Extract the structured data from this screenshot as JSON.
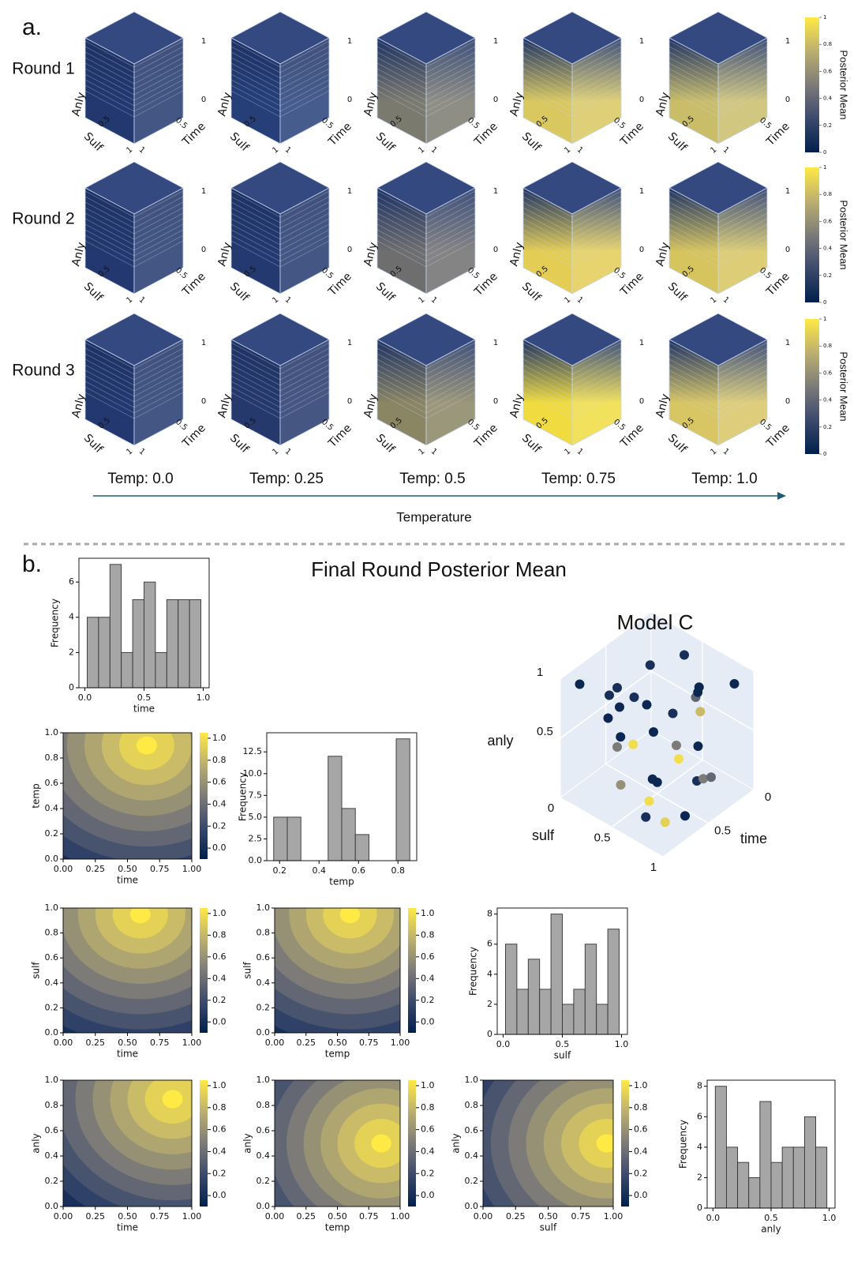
{
  "panel_a": {
    "label": "a.",
    "rows": [
      "Round 1",
      "Round 2",
      "Round 3"
    ],
    "columns": [
      "Temp: 0.0",
      "Temp: 0.25",
      "Temp: 0.5",
      "Temp: 0.75",
      "Temp: 1.0"
    ],
    "arrow_label": "Temperature",
    "cube_labels": [
      "Anly",
      "Sulf",
      "Time"
    ],
    "cube_ticks": [
      "1",
      "0",
      "0.5",
      "0.5",
      "1",
      "1"
    ],
    "cube_colors": [
      [
        "#22386e",
        "#263f78",
        "#7a7a6e",
        "#d9c860",
        "#c9bd6a"
      ],
      [
        "#22386e",
        "#23396f",
        "#6e6e6e",
        "#e3cd55",
        "#d6c45e"
      ],
      [
        "#22386e",
        "#26396c",
        "#8a8563",
        "#f0dc40",
        "#d8c665"
      ]
    ],
    "colorbar": {
      "label": "Posterior Mean",
      "lim": [
        0,
        1
      ],
      "ticks": [
        0,
        0.2,
        0.4,
        0.6,
        0.8,
        1
      ],
      "colors": [
        "#00204c",
        "#3b496c",
        "#7c7b78",
        "#bcaf6f",
        "#ffe945"
      ]
    }
  },
  "panel_b": {
    "label": "b.",
    "title": "Final Round Posterior Mean"
  },
  "contour_axes": {
    "xlim": [
      0,
      1
    ],
    "ylim": [
      0,
      1
    ],
    "xticks": [
      {
        "value": 0,
        "label": "0.00"
      },
      0.25,
      {
        "value": 0.5,
        "label": "0.50"
      },
      0.75,
      {
        "value": 1,
        "label": "1.00"
      }
    ],
    "yticks": [
      {
        "value": 0,
        "label": "0.0"
      },
      0.2,
      0.4,
      0.6,
      0.8,
      {
        "value": 1,
        "label": "1.0"
      }
    ],
    "colorbar_lim": [
      -0.1,
      1.05
    ],
    "colorbar_ticks": [
      {
        "value": 0,
        "label": "0.0"
      },
      0.2,
      0.4,
      0.6,
      0.8,
      {
        "value": 1,
        "label": "1.0"
      }
    ]
  },
  "chart_data": [
    {
      "type": "histogram",
      "xlabel": "time",
      "ylabel": "Frequency",
      "color": "#a6a6a6",
      "bins": [
        0.02,
        0.116,
        0.212,
        0.308,
        0.404,
        0.5,
        0.596,
        0.692,
        0.788,
        0.884,
        0.98
      ],
      "counts": [
        4,
        4,
        7,
        2,
        5,
        6,
        2,
        5,
        5,
        5
      ],
      "xlim": [
        -0.05,
        1.05
      ],
      "ylim": [
        0,
        7.35
      ],
      "xticks": [
        {
          "value": 0,
          "label": "0.0"
        },
        0.5,
        {
          "value": 1,
          "label": "1.0"
        }
      ],
      "yticks": [
        0,
        2,
        4,
        6
      ]
    },
    {
      "type": "contour",
      "xlabel": "time",
      "ylabel": "temp",
      "peak": [
        0.65,
        0.9
      ]
    },
    {
      "type": "histogram",
      "xlabel": "temp",
      "ylabel": "Frequency",
      "color": "#a6a6a6",
      "bins": [
        0.17,
        0.239,
        0.308,
        0.377,
        0.446,
        0.515,
        0.584,
        0.653,
        0.722,
        0.791,
        0.86
      ],
      "counts": [
        5,
        5,
        0,
        0,
        12,
        6,
        3,
        0,
        0,
        14
      ],
      "xlim": [
        0.135,
        0.895
      ],
      "ylim": [
        0,
        14.7
      ],
      "xticks": [
        0.2,
        0.4,
        0.6,
        0.8
      ],
      "yticks": [
        {
          "value": 0,
          "label": "0.0"
        },
        2.5,
        {
          "value": 5,
          "label": "5.0"
        },
        7.5,
        {
          "value": 10,
          "label": "10.0"
        },
        12.5
      ]
    },
    {
      "type": "contour",
      "xlabel": "time",
      "ylabel": "sulf",
      "peak": [
        0.6,
        0.95
      ]
    },
    {
      "type": "contour",
      "xlabel": "temp",
      "ylabel": "sulf",
      "peak": [
        0.6,
        0.95
      ]
    },
    {
      "type": "histogram",
      "xlabel": "sulf",
      "ylabel": "Frequency",
      "color": "#a6a6a6",
      "bins": [
        0.02,
        0.116,
        0.212,
        0.308,
        0.404,
        0.5,
        0.596,
        0.692,
        0.788,
        0.884,
        0.98
      ],
      "counts": [
        6,
        3,
        5,
        3,
        8,
        2,
        3,
        6,
        2,
        7
      ],
      "xlim": [
        -0.05,
        1.05
      ],
      "ylim": [
        0,
        8.4
      ],
      "xticks": [
        {
          "value": 0,
          "label": "0.0"
        },
        0.5,
        {
          "value": 1,
          "label": "1.0"
        }
      ],
      "yticks": [
        0,
        2,
        4,
        6,
        8
      ]
    },
    {
      "type": "contour",
      "xlabel": "time",
      "ylabel": "anly",
      "peak": [
        0.85,
        0.85
      ]
    },
    {
      "type": "contour",
      "xlabel": "temp",
      "ylabel": "anly",
      "peak": [
        0.85,
        0.5
      ]
    },
    {
      "type": "contour",
      "xlabel": "sulf",
      "ylabel": "anly",
      "peak": [
        0.95,
        0.5
      ]
    },
    {
      "type": "histogram",
      "xlabel": "anly",
      "ylabel": "Frequency",
      "color": "#a6a6a6",
      "bins": [
        0.02,
        0.116,
        0.212,
        0.308,
        0.404,
        0.5,
        0.596,
        0.692,
        0.788,
        0.884,
        0.98
      ],
      "counts": [
        8,
        4,
        3,
        2,
        7,
        3,
        4,
        4,
        6,
        4
      ],
      "xlim": [
        -0.05,
        1.05
      ],
      "ylim": [
        0,
        8.4
      ],
      "xticks": [
        {
          "value": 0,
          "label": "0.0"
        },
        0.5,
        {
          "value": 1,
          "label": "1.0"
        }
      ],
      "yticks": [
        0,
        2,
        4,
        6,
        8
      ]
    },
    {
      "type": "scatter3d",
      "title": "Model C",
      "axes": {
        "time": {
          "label": "time",
          "ticks": [
            0,
            0.5
          ]
        },
        "sulf": {
          "label": "sulf",
          "ticks": [
            0,
            0.5,
            1
          ]
        },
        "anly": {
          "label": "anly",
          "ticks": [
            0.5,
            1
          ]
        }
      },
      "points": {
        "time": [
          0.9,
          0.8,
          0.7,
          0.2,
          0.5,
          0.3,
          0.1,
          0.6,
          0.4,
          0.9,
          0.2,
          0.5,
          0.7,
          0.3,
          0.8,
          0.1,
          0.6,
          0.4,
          0.95,
          0.25,
          0.55,
          0.75,
          0.35,
          0.15,
          0.65,
          0.45,
          0.85,
          0.05,
          0.5,
          0.3,
          0.7,
          0.6
        ],
        "sulf": [
          0.1,
          0.3,
          0.2,
          0.5,
          0.4,
          0.7,
          0.9,
          0.8,
          0.6,
          0.5,
          0.2,
          0.9,
          0.6,
          0.1,
          0.4,
          0.3,
          0.2,
          0.8,
          0.9,
          0.7,
          0.5,
          0.8,
          0.3,
          0.6,
          0.4,
          0.1,
          0.7,
          0.5,
          0.95,
          0.85,
          0.95,
          0.2
        ],
        "anly": [
          0.95,
          0.9,
          0.6,
          1.0,
          0.7,
          0.8,
          0.9,
          0.5,
          0.4,
          0.3,
          0.2,
          0.6,
          0.1,
          0.5,
          0.85,
          0.35,
          0.3,
          0.2,
          0.55,
          0.65,
          0.15,
          0.05,
          0.9,
          0.75,
          0.45,
          0.25,
          0.1,
          0.6,
          0.35,
          0.2,
          0.15,
          0.8
        ],
        "value": [
          0.05,
          0.1,
          0.05,
          0.1,
          0.05,
          0.4,
          0.05,
          0.95,
          0.5,
          0.6,
          0.05,
          0.05,
          0.95,
          0.1,
          0.05,
          0.1,
          0.5,
          0.1,
          0.05,
          0.8,
          0.05,
          0.9,
          0.1,
          0.05,
          0.95,
          0.05,
          0.1,
          0.05,
          0.5,
          0.4,
          0.05,
          0.1
        ]
      }
    }
  ]
}
